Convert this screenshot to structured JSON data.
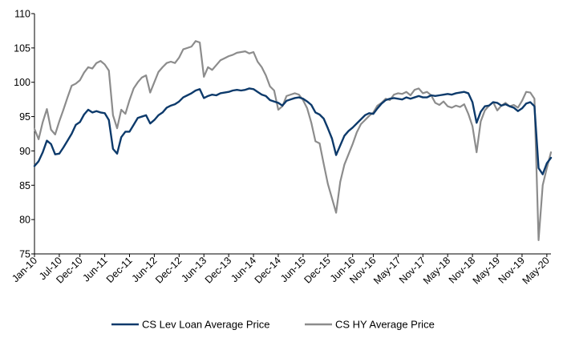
{
  "chart_data": {
    "type": "line",
    "title": "",
    "xlabel": "",
    "ylabel": "",
    "ylim": [
      75,
      110
    ],
    "yticks": [
      75,
      80,
      85,
      90,
      95,
      100,
      105,
      110
    ],
    "xlim": [
      "2010-01",
      "2020-06"
    ],
    "xticks": [
      {
        "date": "2010-01",
        "label": "Jan-10"
      },
      {
        "date": "2010-07",
        "label": "Jul-10"
      },
      {
        "date": "2010-12",
        "label": "Dec-10"
      },
      {
        "date": "2011-06",
        "label": "Jun-11"
      },
      {
        "date": "2011-12",
        "label": "Dec-11"
      },
      {
        "date": "2012-06",
        "label": "Jun-12"
      },
      {
        "date": "2012-12",
        "label": "Dec-12"
      },
      {
        "date": "2013-06",
        "label": "Jun-13"
      },
      {
        "date": "2013-12",
        "label": "Dec-13"
      },
      {
        "date": "2014-06",
        "label": "Jun-14"
      },
      {
        "date": "2014-12",
        "label": "Dec-14"
      },
      {
        "date": "2015-06",
        "label": "Jun-15"
      },
      {
        "date": "2015-12",
        "label": "Dec-15"
      },
      {
        "date": "2016-06",
        "label": "Jun-16"
      },
      {
        "date": "2016-11",
        "label": "Nov-16"
      },
      {
        "date": "2017-05",
        "label": "May-17"
      },
      {
        "date": "2017-11",
        "label": "Nov-17"
      },
      {
        "date": "2018-05",
        "label": "May-18"
      },
      {
        "date": "2018-11",
        "label": "Nov-18"
      },
      {
        "date": "2019-05",
        "label": "May-19"
      },
      {
        "date": "2019-11",
        "label": "Nov-19"
      },
      {
        "date": "2020-05",
        "label": "May-20"
      }
    ],
    "grid": false,
    "legend_position": "bottom",
    "series": [
      {
        "name": "CS Lev Loan Average Price",
        "color": "#0d3a6b",
        "points": [
          [
            "2010-01",
            87.8
          ],
          [
            "2010-02",
            88.5
          ],
          [
            "2010-03",
            89.8
          ],
          [
            "2010-04",
            91.5
          ],
          [
            "2010-05",
            91.0
          ],
          [
            "2010-06",
            89.5
          ],
          [
            "2010-07",
            89.6
          ],
          [
            "2010-08",
            90.5
          ],
          [
            "2010-09",
            91.5
          ],
          [
            "2010-10",
            92.5
          ],
          [
            "2010-11",
            93.8
          ],
          [
            "2010-12",
            94.2
          ],
          [
            "2011-01",
            95.3
          ],
          [
            "2011-02",
            96.0
          ],
          [
            "2011-03",
            95.6
          ],
          [
            "2011-04",
            95.8
          ],
          [
            "2011-05",
            95.6
          ],
          [
            "2011-06",
            95.5
          ],
          [
            "2011-07",
            94.5
          ],
          [
            "2011-08",
            90.3
          ],
          [
            "2011-09",
            89.6
          ],
          [
            "2011-10",
            92.0
          ],
          [
            "2011-11",
            92.8
          ],
          [
            "2011-12",
            92.8
          ],
          [
            "2012-01",
            93.8
          ],
          [
            "2012-02",
            94.8
          ],
          [
            "2012-03",
            95.0
          ],
          [
            "2012-04",
            95.2
          ],
          [
            "2012-05",
            94.0
          ],
          [
            "2012-06",
            94.5
          ],
          [
            "2012-07",
            95.2
          ],
          [
            "2012-08",
            95.6
          ],
          [
            "2012-09",
            96.3
          ],
          [
            "2012-10",
            96.6
          ],
          [
            "2012-11",
            96.8
          ],
          [
            "2012-12",
            97.2
          ],
          [
            "2013-01",
            97.8
          ],
          [
            "2013-02",
            98.1
          ],
          [
            "2013-03",
            98.4
          ],
          [
            "2013-04",
            98.8
          ],
          [
            "2013-05",
            99.0
          ],
          [
            "2013-06",
            97.7
          ],
          [
            "2013-07",
            98.0
          ],
          [
            "2013-08",
            98.2
          ],
          [
            "2013-09",
            98.1
          ],
          [
            "2013-10",
            98.4
          ],
          [
            "2013-11",
            98.5
          ],
          [
            "2013-12",
            98.6
          ],
          [
            "2014-01",
            98.8
          ],
          [
            "2014-02",
            98.9
          ],
          [
            "2014-03",
            98.8
          ],
          [
            "2014-04",
            98.9
          ],
          [
            "2014-05",
            99.1
          ],
          [
            "2014-06",
            99.0
          ],
          [
            "2014-07",
            98.6
          ],
          [
            "2014-08",
            98.2
          ],
          [
            "2014-09",
            98.0
          ],
          [
            "2014-10",
            97.4
          ],
          [
            "2014-11",
            97.2
          ],
          [
            "2014-12",
            97.0
          ],
          [
            "2015-01",
            96.6
          ],
          [
            "2015-02",
            97.3
          ],
          [
            "2015-03",
            97.5
          ],
          [
            "2015-04",
            97.7
          ],
          [
            "2015-05",
            97.8
          ],
          [
            "2015-06",
            97.6
          ],
          [
            "2015-07",
            97.2
          ],
          [
            "2015-08",
            96.7
          ],
          [
            "2015-09",
            95.6
          ],
          [
            "2015-10",
            95.3
          ],
          [
            "2015-11",
            94.7
          ],
          [
            "2015-12",
            93.3
          ],
          [
            "2016-01",
            91.8
          ],
          [
            "2016-02",
            89.4
          ],
          [
            "2016-03",
            90.8
          ],
          [
            "2016-04",
            92.2
          ],
          [
            "2016-05",
            92.9
          ],
          [
            "2016-06",
            93.4
          ],
          [
            "2016-07",
            94.0
          ],
          [
            "2016-08",
            94.6
          ],
          [
            "2016-09",
            95.2
          ],
          [
            "2016-10",
            95.5
          ],
          [
            "2016-11",
            95.4
          ],
          [
            "2016-12",
            96.2
          ],
          [
            "2017-01",
            96.9
          ],
          [
            "2017-02",
            97.4
          ],
          [
            "2017-03",
            97.6
          ],
          [
            "2017-04",
            97.7
          ],
          [
            "2017-05",
            97.6
          ],
          [
            "2017-06",
            97.5
          ],
          [
            "2017-07",
            97.8
          ],
          [
            "2017-08",
            97.6
          ],
          [
            "2017-09",
            97.8
          ],
          [
            "2017-10",
            98.0
          ],
          [
            "2017-11",
            97.8
          ],
          [
            "2017-12",
            97.8
          ],
          [
            "2018-01",
            98.1
          ],
          [
            "2018-02",
            98.0
          ],
          [
            "2018-03",
            98.1
          ],
          [
            "2018-04",
            98.2
          ],
          [
            "2018-05",
            98.3
          ],
          [
            "2018-06",
            98.2
          ],
          [
            "2018-07",
            98.4
          ],
          [
            "2018-08",
            98.5
          ],
          [
            "2018-09",
            98.6
          ],
          [
            "2018-10",
            98.4
          ],
          [
            "2018-11",
            97.1
          ],
          [
            "2018-12",
            94.1
          ],
          [
            "2019-01",
            95.7
          ],
          [
            "2019-02",
            96.5
          ],
          [
            "2019-03",
            96.6
          ],
          [
            "2019-04",
            97.1
          ],
          [
            "2019-05",
            97.0
          ],
          [
            "2019-06",
            96.6
          ],
          [
            "2019-07",
            96.8
          ],
          [
            "2019-08",
            96.5
          ],
          [
            "2019-09",
            96.3
          ],
          [
            "2019-10",
            95.8
          ],
          [
            "2019-11",
            96.2
          ],
          [
            "2019-12",
            96.9
          ],
          [
            "2020-01",
            97.1
          ],
          [
            "2020-02",
            96.5
          ],
          [
            "2020-03",
            87.5
          ],
          [
            "2020-04",
            86.6
          ],
          [
            "2020-05",
            88.2
          ],
          [
            "2020-06",
            89.0
          ]
        ]
      },
      {
        "name": "CS HY Average Price",
        "color": "#8c8c8c",
        "points": [
          [
            "2010-01",
            93.2
          ],
          [
            "2010-02",
            91.7
          ],
          [
            "2010-03",
            94.2
          ],
          [
            "2010-04",
            96.1
          ],
          [
            "2010-05",
            93.1
          ],
          [
            "2010-06",
            92.4
          ],
          [
            "2010-07",
            94.3
          ],
          [
            "2010-08",
            96.0
          ],
          [
            "2010-09",
            97.8
          ],
          [
            "2010-10",
            99.5
          ],
          [
            "2010-11",
            99.8
          ],
          [
            "2010-12",
            100.3
          ],
          [
            "2011-01",
            101.4
          ],
          [
            "2011-02",
            102.2
          ],
          [
            "2011-03",
            102.0
          ],
          [
            "2011-04",
            102.8
          ],
          [
            "2011-05",
            103.1
          ],
          [
            "2011-06",
            102.6
          ],
          [
            "2011-07",
            101.7
          ],
          [
            "2011-08",
            95.2
          ],
          [
            "2011-09",
            93.3
          ],
          [
            "2011-10",
            96.0
          ],
          [
            "2011-11",
            95.4
          ],
          [
            "2011-12",
            97.4
          ],
          [
            "2012-01",
            99.1
          ],
          [
            "2012-02",
            100.0
          ],
          [
            "2012-03",
            100.7
          ],
          [
            "2012-04",
            101.0
          ],
          [
            "2012-05",
            98.5
          ],
          [
            "2012-06",
            100.0
          ],
          [
            "2012-07",
            101.5
          ],
          [
            "2012-08",
            102.2
          ],
          [
            "2012-09",
            102.8
          ],
          [
            "2012-10",
            103.0
          ],
          [
            "2012-11",
            102.8
          ],
          [
            "2012-12",
            103.6
          ],
          [
            "2013-01",
            104.8
          ],
          [
            "2013-02",
            105.0
          ],
          [
            "2013-03",
            105.2
          ],
          [
            "2013-04",
            106.0
          ],
          [
            "2013-05",
            105.8
          ],
          [
            "2013-06",
            100.8
          ],
          [
            "2013-07",
            102.2
          ],
          [
            "2013-08",
            101.8
          ],
          [
            "2013-09",
            102.5
          ],
          [
            "2013-10",
            103.2
          ],
          [
            "2013-11",
            103.5
          ],
          [
            "2013-12",
            103.8
          ],
          [
            "2014-01",
            104.0
          ],
          [
            "2014-02",
            104.3
          ],
          [
            "2014-03",
            104.4
          ],
          [
            "2014-04",
            104.5
          ],
          [
            "2014-05",
            104.2
          ],
          [
            "2014-06",
            104.4
          ],
          [
            "2014-07",
            103.0
          ],
          [
            "2014-08",
            102.2
          ],
          [
            "2014-09",
            101.0
          ],
          [
            "2014-10",
            99.4
          ],
          [
            "2014-11",
            98.8
          ],
          [
            "2014-12",
            96.0
          ],
          [
            "2015-01",
            96.5
          ],
          [
            "2015-02",
            98.0
          ],
          [
            "2015-03",
            98.2
          ],
          [
            "2015-04",
            98.4
          ],
          [
            "2015-05",
            98.2
          ],
          [
            "2015-06",
            97.4
          ],
          [
            "2015-07",
            96.2
          ],
          [
            "2015-08",
            94.1
          ],
          [
            "2015-09",
            91.4
          ],
          [
            "2015-10",
            91.1
          ],
          [
            "2015-11",
            88.1
          ],
          [
            "2015-12",
            85.2
          ],
          [
            "2016-01",
            83.1
          ],
          [
            "2016-02",
            81.0
          ],
          [
            "2016-03",
            85.5
          ],
          [
            "2016-04",
            88.0
          ],
          [
            "2016-05",
            89.5
          ],
          [
            "2016-06",
            91.0
          ],
          [
            "2016-07",
            92.7
          ],
          [
            "2016-08",
            93.9
          ],
          [
            "2016-09",
            94.5
          ],
          [
            "2016-10",
            95.1
          ],
          [
            "2016-11",
            95.6
          ],
          [
            "2016-12",
            96.6
          ],
          [
            "2017-01",
            97.0
          ],
          [
            "2017-02",
            97.6
          ],
          [
            "2017-03",
            97.4
          ],
          [
            "2017-04",
            98.2
          ],
          [
            "2017-05",
            98.4
          ],
          [
            "2017-06",
            98.3
          ],
          [
            "2017-07",
            98.6
          ],
          [
            "2017-08",
            98.1
          ],
          [
            "2017-09",
            98.9
          ],
          [
            "2017-10",
            99.1
          ],
          [
            "2017-11",
            98.4
          ],
          [
            "2017-12",
            98.6
          ],
          [
            "2018-01",
            98.1
          ],
          [
            "2018-02",
            97.0
          ],
          [
            "2018-03",
            96.7
          ],
          [
            "2018-04",
            97.2
          ],
          [
            "2018-05",
            96.5
          ],
          [
            "2018-06",
            96.3
          ],
          [
            "2018-07",
            96.6
          ],
          [
            "2018-08",
            96.4
          ],
          [
            "2018-09",
            96.8
          ],
          [
            "2018-10",
            95.4
          ],
          [
            "2018-11",
            93.6
          ],
          [
            "2018-12",
            89.8
          ],
          [
            "2019-01",
            94.3
          ],
          [
            "2019-02",
            95.9
          ],
          [
            "2019-03",
            96.6
          ],
          [
            "2019-04",
            97.1
          ],
          [
            "2019-05",
            95.9
          ],
          [
            "2019-06",
            96.6
          ],
          [
            "2019-07",
            97.0
          ],
          [
            "2019-08",
            96.5
          ],
          [
            "2019-09",
            96.7
          ],
          [
            "2019-10",
            96.3
          ],
          [
            "2019-11",
            97.3
          ],
          [
            "2019-12",
            98.6
          ],
          [
            "2020-01",
            98.5
          ],
          [
            "2020-02",
            97.6
          ],
          [
            "2020-03",
            77.0
          ],
          [
            "2020-04",
            85.0
          ],
          [
            "2020-05",
            87.5
          ],
          [
            "2020-06",
            89.8
          ]
        ]
      }
    ]
  }
}
